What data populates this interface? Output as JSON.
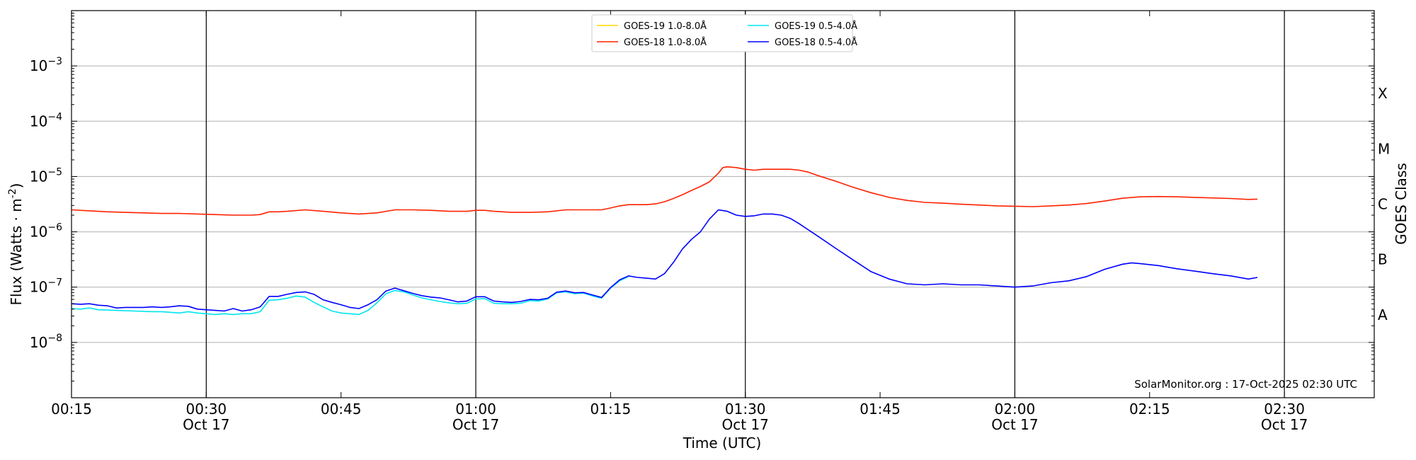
{
  "chart_data": {
    "type": "line",
    "title": "",
    "xlabel": "Time (UTC)",
    "ylabel": "Flux (Watts · m",
    "ylabel_exponent": "-2",
    "ylabel_close": ")",
    "y2label": "GOES Class",
    "yscale": "log",
    "ylim": [
      1e-09,
      0.01
    ],
    "xlim": [
      "00:15",
      "02:40"
    ],
    "grid": "horizontal",
    "legend_position": "top-center",
    "y_ticks": [
      {
        "value": 0.001,
        "base": "10",
        "exp": "−3"
      },
      {
        "value": 0.0001,
        "base": "10",
        "exp": "−4"
      },
      {
        "value": 1e-05,
        "base": "10",
        "exp": "−5"
      },
      {
        "value": 1e-06,
        "base": "10",
        "exp": "−6"
      },
      {
        "value": 1e-07,
        "base": "10",
        "exp": "−7"
      },
      {
        "value": 1e-08,
        "base": "10",
        "exp": "−8"
      }
    ],
    "x_ticks": [
      {
        "time": "00:15",
        "date": ""
      },
      {
        "time": "00:30",
        "date": "Oct 17"
      },
      {
        "time": "00:45",
        "date": ""
      },
      {
        "time": "01:00",
        "date": "Oct 17"
      },
      {
        "time": "01:15",
        "date": ""
      },
      {
        "time": "01:30",
        "date": "Oct 17"
      },
      {
        "time": "01:45",
        "date": ""
      },
      {
        "time": "02:00",
        "date": "Oct 17"
      },
      {
        "time": "02:15",
        "date": ""
      },
      {
        "time": "02:30",
        "date": "Oct 17"
      }
    ],
    "vertical_lines": [
      "00:30",
      "01:00",
      "01:30",
      "02:00",
      "02:30"
    ],
    "goes_classes": [
      {
        "label": "A",
        "value": 3.16e-08
      },
      {
        "label": "B",
        "value": 3.16e-07
      },
      {
        "label": "C",
        "value": 3.16e-06
      },
      {
        "label": "M",
        "value": 3.16e-05
      },
      {
        "label": "X",
        "value": 0.000316
      }
    ],
    "credit": "SolarMonitor.org : 17-Oct-2025 02:30 UTC",
    "series": [
      {
        "name": "GOES-19 1.0-8.0Å",
        "color": "#ffd700",
        "points": []
      },
      {
        "name": "GOES-19 0.5-4.0Å",
        "color": "#00e5ee",
        "points": [
          [
            "00:15",
            4.1e-08
          ],
          [
            "00:16",
            4e-08
          ],
          [
            "00:17",
            4.2e-08
          ],
          [
            "00:18",
            3.9e-08
          ],
          [
            "00:20",
            3.8e-08
          ],
          [
            "00:22",
            3.7e-08
          ],
          [
            "00:24",
            3.6e-08
          ],
          [
            "00:25",
            3.6e-08
          ],
          [
            "00:26",
            3.5e-08
          ],
          [
            "00:27",
            3.4e-08
          ],
          [
            "00:28",
            3.6e-08
          ],
          [
            "00:29",
            3.4e-08
          ],
          [
            "00:30",
            3.3e-08
          ],
          [
            "00:31",
            3.2e-08
          ],
          [
            "00:32",
            3.3e-08
          ],
          [
            "00:33",
            3.2e-08
          ],
          [
            "00:34",
            3.3e-08
          ],
          [
            "00:35",
            3.3e-08
          ],
          [
            "00:36",
            3.6e-08
          ],
          [
            "00:37",
            5.8e-08
          ],
          [
            "00:38",
            5.9e-08
          ],
          [
            "00:39",
            6.3e-08
          ],
          [
            "00:40",
            6.9e-08
          ],
          [
            "00:41",
            6.6e-08
          ],
          [
            "00:42",
            5.3e-08
          ],
          [
            "00:43",
            4.4e-08
          ],
          [
            "00:44",
            3.7e-08
          ],
          [
            "00:45",
            3.4e-08
          ],
          [
            "00:46",
            3.3e-08
          ],
          [
            "00:47",
            3.2e-08
          ],
          [
            "00:48",
            3.8e-08
          ],
          [
            "00:49",
            5.2e-08
          ],
          [
            "00:50",
            7.6e-08
          ],
          [
            "00:51",
            8.7e-08
          ],
          [
            "00:52",
            8.2e-08
          ],
          [
            "00:53",
            7.2e-08
          ],
          [
            "00:54",
            6.4e-08
          ],
          [
            "00:55",
            5.9e-08
          ],
          [
            "00:56",
            5.5e-08
          ],
          [
            "00:57",
            5.2e-08
          ],
          [
            "00:58",
            5e-08
          ],
          [
            "00:59",
            5.1e-08
          ],
          [
            "01:00",
            6.1e-08
          ],
          [
            "01:01",
            6.2e-08
          ],
          [
            "01:02",
            5.1e-08
          ],
          [
            "01:03",
            5e-08
          ],
          [
            "01:04",
            5e-08
          ],
          [
            "01:05",
            5.1e-08
          ],
          [
            "01:06",
            5.7e-08
          ],
          [
            "01:07",
            5.6e-08
          ],
          [
            "01:08",
            6.1e-08
          ],
          [
            "01:09",
            7.9e-08
          ],
          [
            "01:10",
            8.2e-08
          ],
          [
            "01:11",
            7.6e-08
          ],
          [
            "01:12",
            7.8e-08
          ],
          [
            "01:13",
            6.9e-08
          ],
          [
            "01:14",
            6.3e-08
          ],
          [
            "01:15",
            9.6e-08
          ],
          [
            "01:16",
            1.3e-07
          ],
          [
            "01:17",
            1.55e-07
          ]
        ]
      },
      {
        "name": "GOES-18 1.0-8.0Å",
        "color": "#ff2200",
        "points": [
          [
            "00:15",
            2.5e-06
          ],
          [
            "00:17",
            2.4e-06
          ],
          [
            "00:19",
            2.3e-06
          ],
          [
            "00:21",
            2.25e-06
          ],
          [
            "00:23",
            2.2e-06
          ],
          [
            "00:25",
            2.15e-06
          ],
          [
            "00:27",
            2.15e-06
          ],
          [
            "00:29",
            2.1e-06
          ],
          [
            "00:31",
            2.05e-06
          ],
          [
            "00:33",
            2e-06
          ],
          [
            "00:35",
            2e-06
          ],
          [
            "00:36",
            2.05e-06
          ],
          [
            "00:37",
            2.3e-06
          ],
          [
            "00:38",
            2.3e-06
          ],
          [
            "00:39",
            2.35e-06
          ],
          [
            "00:41",
            2.5e-06
          ],
          [
            "00:43",
            2.35e-06
          ],
          [
            "00:45",
            2.2e-06
          ],
          [
            "00:47",
            2.1e-06
          ],
          [
            "00:49",
            2.2e-06
          ],
          [
            "00:51",
            2.5e-06
          ],
          [
            "00:53",
            2.5e-06
          ],
          [
            "00:55",
            2.45e-06
          ],
          [
            "00:57",
            2.35e-06
          ],
          [
            "00:59",
            2.35e-06
          ],
          [
            "01:00",
            2.45e-06
          ],
          [
            "01:01",
            2.45e-06
          ],
          [
            "01:02",
            2.35e-06
          ],
          [
            "01:04",
            2.25e-06
          ],
          [
            "01:06",
            2.25e-06
          ],
          [
            "01:08",
            2.3e-06
          ],
          [
            "01:10",
            2.5e-06
          ],
          [
            "01:12",
            2.5e-06
          ],
          [
            "01:14",
            2.5e-06
          ],
          [
            "01:15",
            2.7e-06
          ],
          [
            "01:16",
            2.95e-06
          ],
          [
            "01:17",
            3.1e-06
          ],
          [
            "01:19",
            3.1e-06
          ],
          [
            "01:20",
            3.2e-06
          ],
          [
            "01:21",
            3.5e-06
          ],
          [
            "01:22",
            4e-06
          ],
          [
            "01:23",
            4.7e-06
          ],
          [
            "01:24",
            5.6e-06
          ],
          [
            "01:25",
            6.6e-06
          ],
          [
            "01:26",
            8e-06
          ],
          [
            "01:27",
            1.15e-05
          ],
          [
            "01:27.5",
            1.45e-05
          ],
          [
            "01:28",
            1.5e-05
          ],
          [
            "01:29",
            1.45e-05
          ],
          [
            "01:30",
            1.35e-05
          ],
          [
            "01:31",
            1.3e-05
          ],
          [
            "01:32",
            1.35e-05
          ],
          [
            "01:34",
            1.35e-05
          ],
          [
            "01:35",
            1.35e-05
          ],
          [
            "01:36",
            1.3e-05
          ],
          [
            "01:37",
            1.2e-05
          ],
          [
            "01:38",
            1.05e-05
          ],
          [
            "01:40",
            8.3e-06
          ],
          [
            "01:42",
            6.4e-06
          ],
          [
            "01:44",
            5.1e-06
          ],
          [
            "01:46",
            4.2e-06
          ],
          [
            "01:48",
            3.7e-06
          ],
          [
            "01:50",
            3.4e-06
          ],
          [
            "01:52",
            3.3e-06
          ],
          [
            "01:54",
            3.15e-06
          ],
          [
            "01:56",
            3.05e-06
          ],
          [
            "01:58",
            2.95e-06
          ],
          [
            "02:00",
            2.9e-06
          ],
          [
            "02:02",
            2.85e-06
          ],
          [
            "02:04",
            2.95e-06
          ],
          [
            "02:06",
            3.05e-06
          ],
          [
            "02:08",
            3.25e-06
          ],
          [
            "02:10",
            3.6e-06
          ],
          [
            "02:12",
            4.05e-06
          ],
          [
            "02:14",
            4.3e-06
          ],
          [
            "02:16",
            4.35e-06
          ],
          [
            "02:18",
            4.3e-06
          ],
          [
            "02:20",
            4.2e-06
          ],
          [
            "02:22",
            4.1e-06
          ],
          [
            "02:24",
            4e-06
          ],
          [
            "02:26",
            3.85e-06
          ],
          [
            "02:27",
            3.9e-06
          ]
        ]
      },
      {
        "name": "GOES-18 0.5-4.0Å",
        "color": "#0000ff",
        "points": [
          [
            "00:15",
            5e-08
          ],
          [
            "00:16",
            4.9e-08
          ],
          [
            "00:17",
            5e-08
          ],
          [
            "00:18",
            4.7e-08
          ],
          [
            "00:19",
            4.6e-08
          ],
          [
            "00:20",
            4.2e-08
          ],
          [
            "00:21",
            4.3e-08
          ],
          [
            "00:23",
            4.3e-08
          ],
          [
            "00:24",
            4.4e-08
          ],
          [
            "00:25",
            4.3e-08
          ],
          [
            "00:26",
            4.4e-08
          ],
          [
            "00:27",
            4.6e-08
          ],
          [
            "00:28",
            4.5e-08
          ],
          [
            "00:29",
            4e-08
          ],
          [
            "00:30",
            3.9e-08
          ],
          [
            "00:31",
            3.8e-08
          ],
          [
            "00:32",
            3.7e-08
          ],
          [
            "00:33",
            4.1e-08
          ],
          [
            "00:34",
            3.7e-08
          ],
          [
            "00:35",
            3.9e-08
          ],
          [
            "00:36",
            4.4e-08
          ],
          [
            "00:37",
            6.8e-08
          ],
          [
            "00:38",
            6.8e-08
          ],
          [
            "00:39",
            7.4e-08
          ],
          [
            "00:40",
            8e-08
          ],
          [
            "00:41",
            8.2e-08
          ],
          [
            "00:42",
            7.4e-08
          ],
          [
            "00:43",
            5.9e-08
          ],
          [
            "00:44",
            5.3e-08
          ],
          [
            "00:45",
            4.8e-08
          ],
          [
            "00:46",
            4.3e-08
          ],
          [
            "00:47",
            4.1e-08
          ],
          [
            "00:48",
            4.8e-08
          ],
          [
            "00:49",
            5.9e-08
          ],
          [
            "00:50",
            8.5e-08
          ],
          [
            "00:51",
            9.6e-08
          ],
          [
            "00:52",
            8.6e-08
          ],
          [
            "00:53",
            7.7e-08
          ],
          [
            "00:54",
            7e-08
          ],
          [
            "00:55",
            6.6e-08
          ],
          [
            "00:56",
            6.4e-08
          ],
          [
            "00:57",
            5.9e-08
          ],
          [
            "00:58",
            5.4e-08
          ],
          [
            "00:59",
            5.6e-08
          ],
          [
            "01:00",
            6.7e-08
          ],
          [
            "01:01",
            6.7e-08
          ],
          [
            "01:02",
            5.6e-08
          ],
          [
            "01:03",
            5.4e-08
          ],
          [
            "01:04",
            5.3e-08
          ],
          [
            "01:05",
            5.5e-08
          ],
          [
            "01:06",
            6e-08
          ],
          [
            "01:07",
            5.9e-08
          ],
          [
            "01:08",
            6.3e-08
          ],
          [
            "01:09",
            8.1e-08
          ],
          [
            "01:10",
            8.5e-08
          ],
          [
            "01:11",
            7.9e-08
          ],
          [
            "01:12",
            8e-08
          ],
          [
            "01:13",
            7.2e-08
          ],
          [
            "01:14",
            6.5e-08
          ],
          [
            "01:15",
            9.8e-08
          ],
          [
            "01:16",
            1.35e-07
          ],
          [
            "01:17",
            1.6e-07
          ],
          [
            "01:18",
            1.5e-07
          ],
          [
            "01:19",
            1.45e-07
          ],
          [
            "01:20",
            1.4e-07
          ],
          [
            "01:21",
            1.75e-07
          ],
          [
            "01:22",
            2.8e-07
          ],
          [
            "01:23",
            4.9e-07
          ],
          [
            "01:24",
            7.3e-07
          ],
          [
            "01:25",
            1e-06
          ],
          [
            "01:26",
            1.7e-06
          ],
          [
            "01:27",
            2.5e-06
          ],
          [
            "01:28",
            2.35e-06
          ],
          [
            "01:29",
            2e-06
          ],
          [
            "01:30",
            1.9e-06
          ],
          [
            "01:31",
            1.95e-06
          ],
          [
            "01:32",
            2.1e-06
          ],
          [
            "01:33",
            2.1e-06
          ],
          [
            "01:34",
            2e-06
          ],
          [
            "01:35",
            1.75e-06
          ],
          [
            "01:36",
            1.4e-06
          ],
          [
            "01:38",
            8.5e-07
          ],
          [
            "01:40",
            5.1e-07
          ],
          [
            "01:42",
            3.1e-07
          ],
          [
            "01:44",
            1.9e-07
          ],
          [
            "01:46",
            1.4e-07
          ],
          [
            "01:48",
            1.15e-07
          ],
          [
            "01:50",
            1.1e-07
          ],
          [
            "01:52",
            1.15e-07
          ],
          [
            "01:54",
            1.1e-07
          ],
          [
            "01:56",
            1.1e-07
          ],
          [
            "01:58",
            1.05e-07
          ],
          [
            "02:00",
            1e-07
          ],
          [
            "02:02",
            1.05e-07
          ],
          [
            "02:04",
            1.2e-07
          ],
          [
            "02:06",
            1.3e-07
          ],
          [
            "02:08",
            1.55e-07
          ],
          [
            "02:10",
            2.1e-07
          ],
          [
            "02:12",
            2.6e-07
          ],
          [
            "02:13",
            2.75e-07
          ],
          [
            "02:14",
            2.65e-07
          ],
          [
            "02:16",
            2.45e-07
          ],
          [
            "02:18",
            2.15e-07
          ],
          [
            "02:20",
            1.95e-07
          ],
          [
            "02:22",
            1.75e-07
          ],
          [
            "02:24",
            1.6e-07
          ],
          [
            "02:26",
            1.4e-07
          ],
          [
            "02:27",
            1.5e-07
          ]
        ]
      }
    ]
  }
}
